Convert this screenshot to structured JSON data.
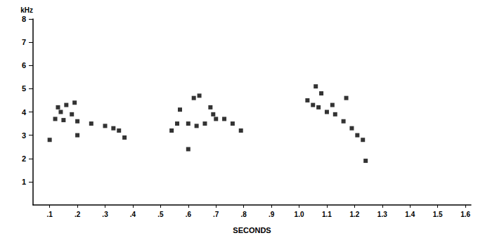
{
  "chart_data": {
    "type": "scatter",
    "color": "#000000",
    "marker": "square",
    "xlabel": "SECONDS",
    "ylabel": "kHz",
    "x": [
      0.12,
      0.15,
      0.2,
      0.25,
      0.3,
      0.33,
      0.35,
      0.37,
      0.13,
      0.16,
      0.19,
      0.14,
      0.18,
      0.1,
      0.2,
      0.56,
      0.6,
      0.63,
      0.66,
      0.68,
      0.69,
      0.7,
      0.73,
      0.76,
      0.79,
      0.62,
      0.64,
      0.57,
      0.6,
      0.54,
      1.03,
      1.05,
      1.07,
      1.1,
      1.13,
      1.16,
      1.19,
      1.21,
      1.23,
      1.06,
      1.08,
      1.17,
      1.12,
      1.24
    ],
    "values": [
      3.7,
      3.65,
      3.6,
      3.5,
      3.4,
      3.3,
      3.2,
      2.9,
      4.2,
      4.3,
      4.4,
      4.0,
      3.9,
      2.8,
      3.0,
      3.5,
      3.5,
      3.4,
      3.5,
      4.2,
      3.9,
      3.7,
      3.7,
      3.5,
      3.2,
      4.6,
      4.7,
      4.1,
      2.4,
      3.2,
      4.5,
      4.3,
      4.2,
      4.0,
      3.9,
      3.6,
      3.3,
      3.0,
      2.8,
      5.1,
      4.8,
      4.6,
      4.3,
      1.9
    ],
    "xlim": [
      0.04,
      1.62
    ],
    "xticks": [
      {
        "value": 0.1,
        "label": ".1"
      },
      {
        "value": 0.2,
        "label": ".2"
      },
      {
        "value": 0.3,
        "label": ".3"
      },
      {
        "value": 0.4,
        "label": ".4"
      },
      {
        "value": 0.5,
        "label": ".5"
      },
      {
        "value": 0.6,
        "label": ".6"
      },
      {
        "value": 0.7,
        "label": ".7"
      },
      {
        "value": 0.8,
        "label": ".8"
      },
      {
        "value": 0.9,
        "label": ".9"
      },
      {
        "value": 1,
        "label": "1.0"
      },
      {
        "value": 1.1,
        "label": "1.1"
      },
      {
        "value": 1.2,
        "label": "1.2"
      },
      {
        "value": 1.3,
        "label": "1.3"
      },
      {
        "value": 1.4,
        "label": "1.4"
      },
      {
        "value": 1.5,
        "label": "1.5"
      },
      {
        "value": 1.6,
        "label": "1.6"
      }
    ],
    "ylim": [
      0,
      8
    ],
    "yticks": [
      1,
      2,
      3,
      4,
      5,
      6,
      7,
      8
    ],
    "grid": false
  }
}
